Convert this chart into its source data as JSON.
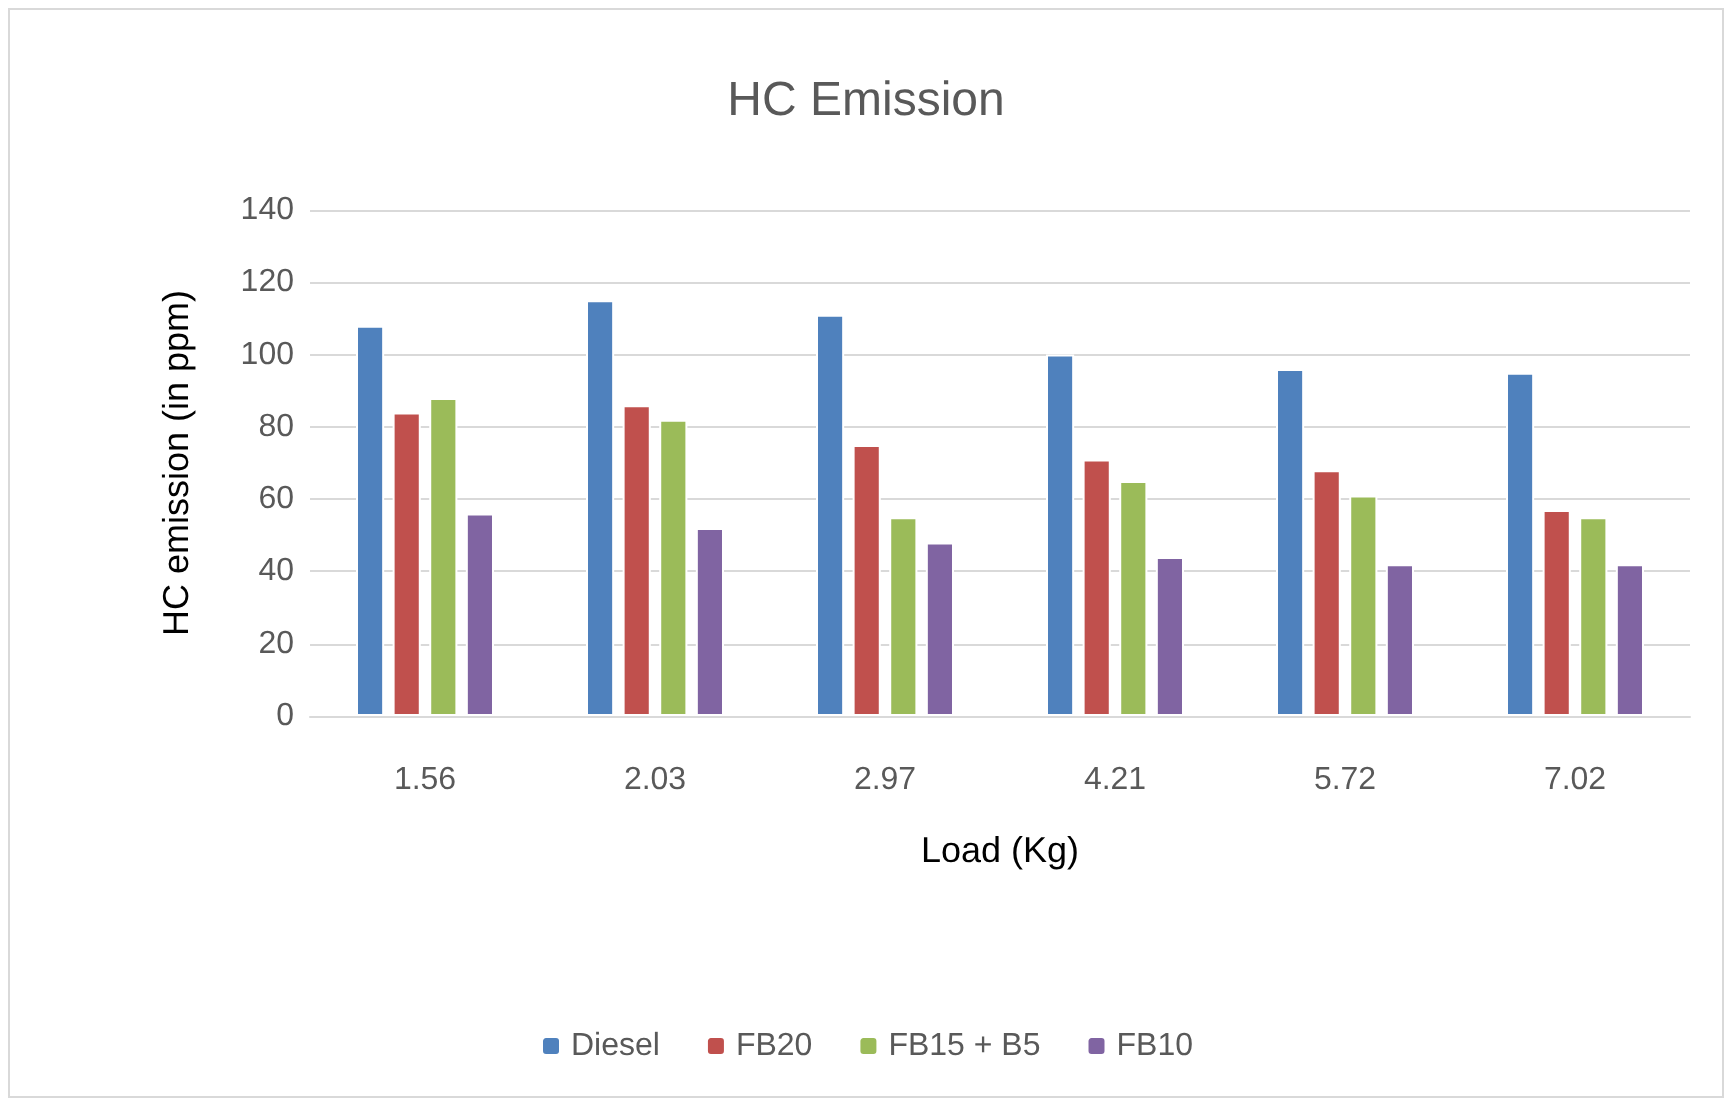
{
  "chart_data": {
    "type": "bar",
    "title": "HC Emission",
    "xlabel": "Load (Kg)",
    "ylabel": "HC emission (in ppm)",
    "categories": [
      "1.56",
      "2.03",
      "2.97",
      "4.21",
      "5.72",
      "7.02"
    ],
    "series": [
      {
        "name": "Diesel",
        "color": "#4f81bd",
        "values": [
          108,
          115,
          111,
          100,
          96,
          95
        ]
      },
      {
        "name": "FB20",
        "color": "#c0504d",
        "values": [
          84,
          86,
          75,
          71,
          68,
          57
        ]
      },
      {
        "name": "FB15 + B5",
        "color": "#9bbb59",
        "values": [
          88,
          82,
          55,
          65,
          61,
          55
        ]
      },
      {
        "name": "FB10",
        "color": "#8064a2",
        "values": [
          56,
          52,
          48,
          44,
          42,
          42
        ]
      }
    ],
    "ylim": [
      0,
      140
    ],
    "yticks": [
      0,
      20,
      40,
      60,
      80,
      100,
      120,
      140
    ],
    "grid": "y",
    "legend": "bottom"
  }
}
